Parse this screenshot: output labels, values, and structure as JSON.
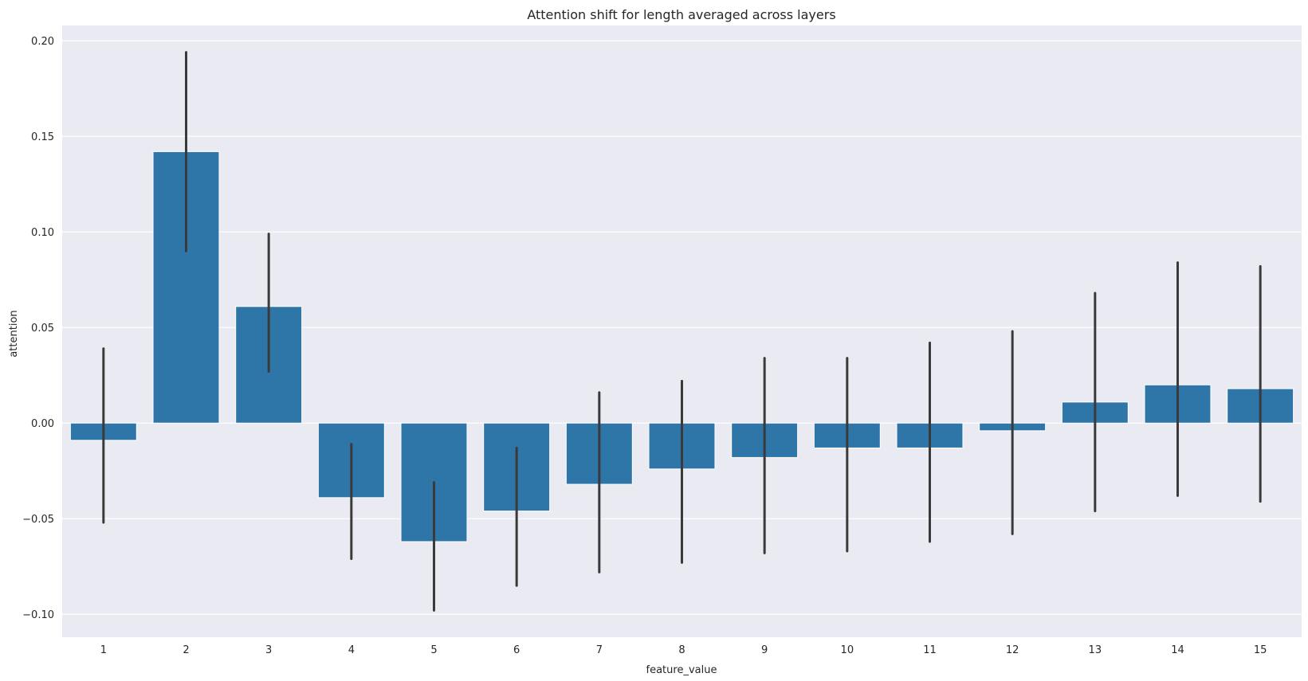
{
  "chart_data": {
    "type": "bar",
    "title": "Attention shift for length averaged across layers",
    "xlabel": "feature_value",
    "ylabel": "attention",
    "categories": [
      "1",
      "2",
      "3",
      "4",
      "5",
      "6",
      "7",
      "8",
      "9",
      "10",
      "11",
      "12",
      "13",
      "14",
      "15"
    ],
    "values": [
      -0.009,
      0.142,
      0.061,
      -0.039,
      -0.062,
      -0.046,
      -0.032,
      -0.024,
      -0.018,
      -0.013,
      -0.013,
      -0.004,
      0.011,
      0.02,
      0.018
    ],
    "error_low": [
      -0.052,
      0.09,
      0.027,
      -0.071,
      -0.098,
      -0.085,
      -0.078,
      -0.073,
      -0.068,
      -0.067,
      -0.062,
      -0.058,
      -0.046,
      -0.038,
      -0.041
    ],
    "error_high": [
      0.039,
      0.194,
      0.099,
      -0.011,
      -0.031,
      -0.013,
      0.016,
      0.022,
      0.034,
      0.034,
      0.042,
      0.048,
      0.068,
      0.084,
      0.082
    ],
    "ylim": [
      -0.112,
      0.208
    ],
    "yticks": [
      -0.1,
      -0.05,
      0.0,
      0.05,
      0.1,
      0.15,
      0.2
    ],
    "ytick_labels": [
      "−0.10",
      "−0.05",
      "0.00",
      "0.05",
      "0.10",
      "0.15",
      "0.20"
    ],
    "grid": true,
    "colors": {
      "bar": "#2e75a8",
      "error_bar": "#3a3a3a",
      "plot_background": "#eaeaf2",
      "grid": "#ffffff"
    }
  }
}
